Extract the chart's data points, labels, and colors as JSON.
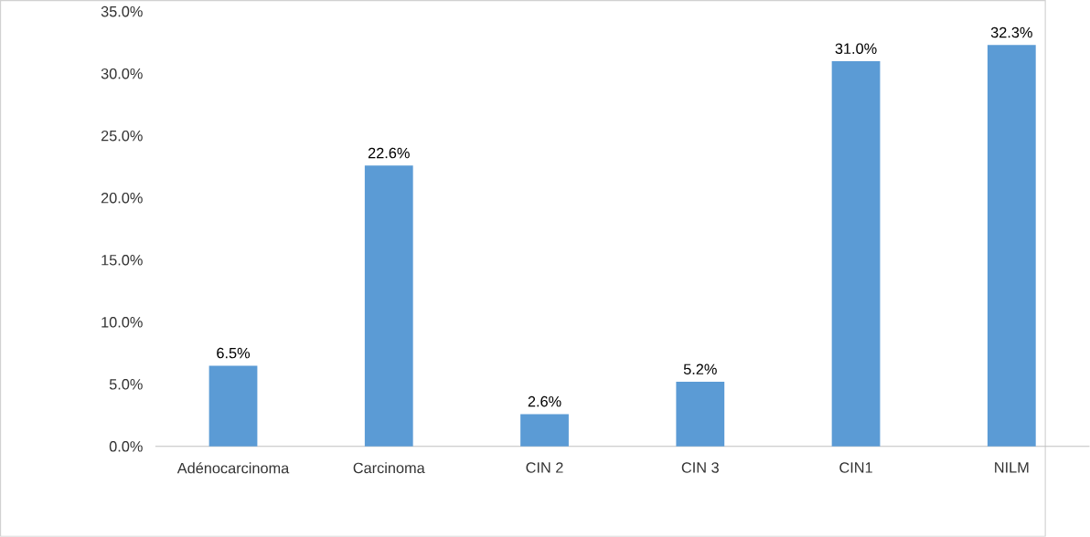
{
  "chart_data": {
    "type": "bar",
    "categories": [
      "Adénocarcinoma",
      "Carcinoma",
      "CIN 2",
      "CIN 3",
      "CIN1",
      "NILM"
    ],
    "values": [
      6.5,
      22.6,
      2.6,
      5.2,
      31.0,
      32.3
    ],
    "value_labels": [
      "6.5%",
      "22.6%",
      "2.6%",
      "5.2%",
      "31.0%",
      "32.3%"
    ],
    "color": "#5b9bd5",
    "ylim": [
      0,
      35
    ],
    "yticks": [
      {
        "value": 0,
        "label": "0.0%"
      },
      {
        "value": 5,
        "label": "5.0%"
      },
      {
        "value": 10,
        "label": "10.0%"
      },
      {
        "value": 15,
        "label": "15.0%"
      },
      {
        "value": 20,
        "label": "20.0%"
      },
      {
        "value": 25,
        "label": "25.0%"
      },
      {
        "value": 30,
        "label": "30.0%"
      },
      {
        "value": 35,
        "label": "35.0%"
      }
    ]
  }
}
